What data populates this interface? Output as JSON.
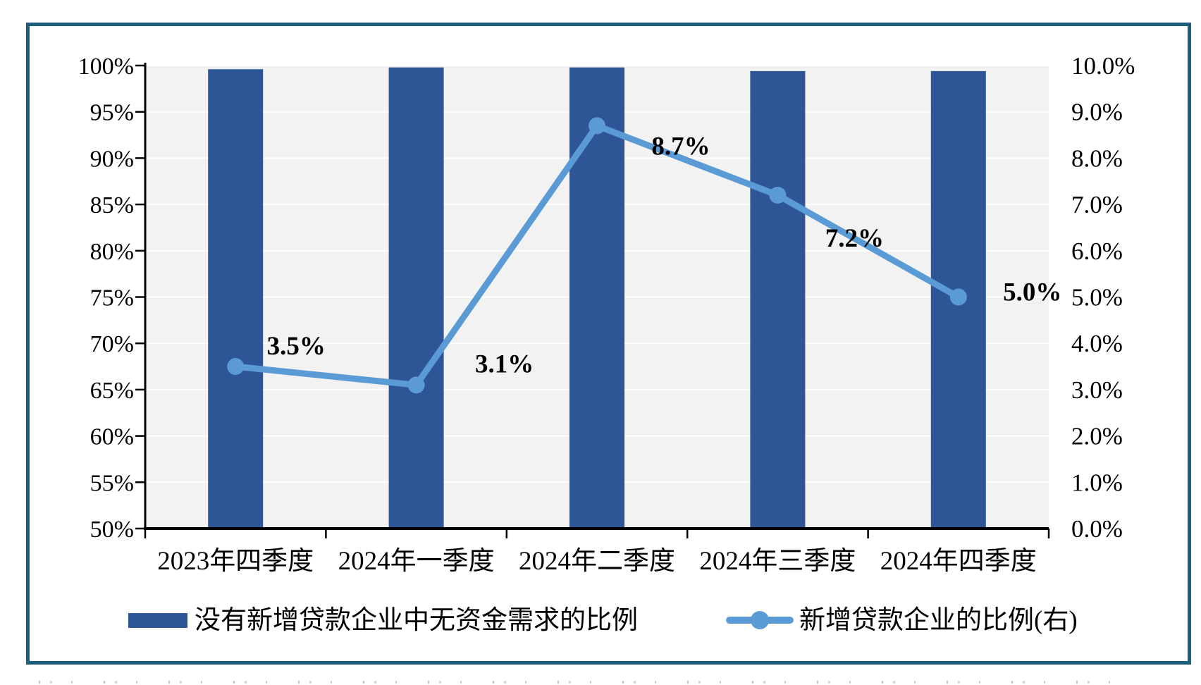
{
  "frame": {
    "border_color": "#1B5E7B"
  },
  "chart_data": {
    "type": "bar",
    "subtype": "combo-bar-line-dual-axis",
    "title": "",
    "categories": [
      "2023年四季度",
      "2024年一季度",
      "2024年二季度",
      "2024年三季度",
      "2024年四季度"
    ],
    "series": [
      {
        "name": "没有新增贷款企业中无资金需求的比例",
        "type": "bar",
        "axis": "left",
        "values": [
          99.6,
          99.8,
          99.8,
          99.4,
          99.4
        ],
        "color": "#2E5596"
      },
      {
        "name": "新增贷款企业的比例(右)",
        "type": "line",
        "axis": "right",
        "values": [
          3.5,
          3.1,
          8.7,
          7.2,
          5.0
        ],
        "data_labels": [
          "3.5%",
          "3.1%",
          "8.7%",
          "7.2%",
          "5.0%"
        ],
        "color": "#5B9BD5"
      }
    ],
    "left_axis": {
      "min": 50,
      "max": 100,
      "step": 5,
      "tick_labels_top_to_bottom": [
        "100%",
        "95%",
        "90%",
        "85%",
        "80%",
        "75%",
        "70%",
        "65%",
        "60%",
        "55%",
        "50%"
      ]
    },
    "right_axis": {
      "min": 0,
      "max": 10,
      "step": 1,
      "tick_labels_top_to_bottom": [
        "10.0%",
        "9.0%",
        "8.0%",
        "7.0%",
        "6.0%",
        "5.0%",
        "4.0%",
        "3.0%",
        "2.0%",
        "1.0%",
        "0.0%"
      ]
    },
    "grid": true,
    "gridline_color": "#FFFFFF",
    "plot_bg": "#F2F2F2",
    "axis_color": "#000000",
    "legend_position": "bottom"
  }
}
